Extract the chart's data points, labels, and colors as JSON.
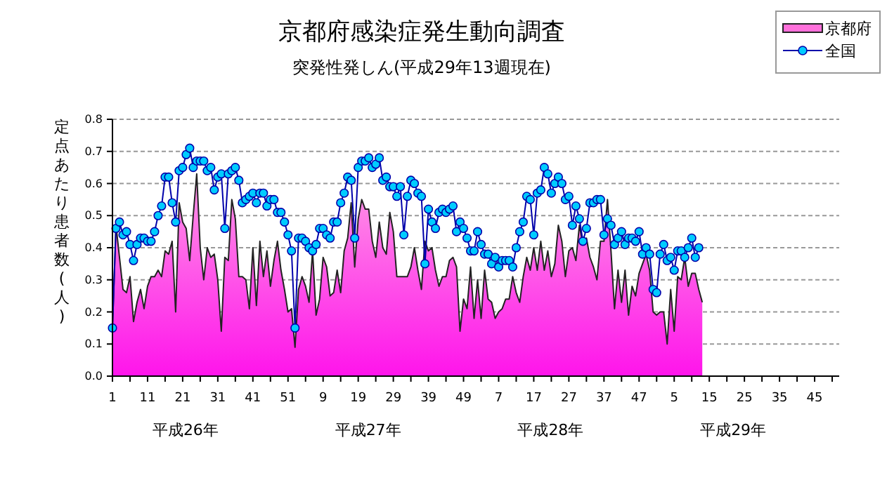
{
  "chart_data": {
    "type": "area",
    "title": "京都府感染症発生動向調査",
    "subtitle": "突発性発しん(平成29年13週現在)",
    "ylabel": "定点あたり患者数(人)",
    "categories": [
      "1",
      null,
      null,
      null,
      null,
      null,
      null,
      null,
      null,
      null,
      "11",
      null,
      null,
      null,
      null,
      null,
      null,
      null,
      null,
      null,
      "21",
      null,
      null,
      null,
      null,
      null,
      null,
      null,
      null,
      null,
      "31",
      null,
      null,
      null,
      null,
      null,
      null,
      null,
      null,
      null,
      "41",
      null,
      null,
      null,
      null,
      null,
      null,
      null,
      null,
      null,
      "51",
      null,
      null,
      null,
      null,
      null,
      null,
      null,
      null,
      null,
      "9",
      null,
      null,
      null,
      null,
      null,
      null,
      null,
      null,
      null,
      "19",
      null,
      null,
      null,
      null,
      null,
      null,
      null,
      null,
      null,
      "29",
      null,
      null,
      null,
      null,
      null,
      null,
      null,
      null,
      null,
      "39",
      null,
      null,
      null,
      null,
      null,
      null,
      null,
      null,
      null,
      "49",
      null,
      null,
      null,
      null,
      null,
      null,
      null,
      null,
      null,
      "7",
      null,
      null,
      null,
      null,
      null,
      null,
      null,
      null,
      null,
      "17",
      null,
      null,
      null,
      null,
      null,
      null,
      null,
      null,
      null,
      "27",
      null,
      null,
      null,
      null,
      null,
      null,
      null,
      null,
      null,
      "37",
      null,
      null,
      null,
      null,
      null,
      null,
      null,
      null,
      null,
      "47",
      null,
      null,
      null,
      null,
      null,
      null,
      null,
      null,
      null,
      "5",
      null,
      null,
      null,
      null,
      null,
      null,
      null,
      null,
      null,
      "15",
      null,
      null,
      null,
      null,
      null,
      null,
      null,
      null,
      null,
      "25",
      null,
      null,
      null,
      null,
      null,
      null,
      null,
      null,
      null,
      "35",
      null,
      null,
      null,
      null,
      null,
      null,
      null,
      null,
      null,
      "45",
      null,
      null,
      null,
      null,
      null,
      null,
      null
    ],
    "series": [
      {
        "name": "京都府",
        "color": "#ff33cc",
        "values": [
          0.15,
          0.47,
          0.37,
          0.27,
          0.26,
          0.31,
          0.17,
          0.23,
          0.27,
          0.21,
          0.28,
          0.31,
          0.31,
          0.33,
          0.31,
          0.39,
          0.38,
          0.42,
          0.2,
          0.54,
          0.48,
          0.46,
          0.36,
          0.5,
          0.63,
          0.4,
          0.3,
          0.4,
          0.37,
          0.38,
          0.3,
          0.14,
          0.37,
          0.36,
          0.55,
          0.49,
          0.31,
          0.31,
          0.3,
          0.21,
          0.4,
          0.22,
          0.42,
          0.31,
          0.39,
          0.28,
          0.36,
          0.42,
          0.33,
          0.27,
          0.2,
          0.21,
          0.09,
          0.27,
          0.31,
          0.28,
          0.23,
          0.39,
          0.19,
          0.24,
          0.37,
          0.34,
          0.25,
          0.26,
          0.33,
          0.26,
          0.39,
          0.43,
          0.54,
          0.34,
          0.49,
          0.55,
          0.52,
          0.52,
          0.42,
          0.37,
          0.48,
          0.4,
          0.38,
          0.51,
          0.45,
          0.31,
          0.31,
          0.31,
          0.31,
          0.34,
          0.4,
          0.33,
          0.27,
          0.42,
          0.39,
          0.4,
          0.33,
          0.28,
          0.31,
          0.31,
          0.36,
          0.37,
          0.34,
          0.14,
          0.24,
          0.21,
          0.34,
          0.18,
          0.3,
          0.18,
          0.33,
          0.24,
          0.23,
          0.18,
          0.2,
          0.21,
          0.24,
          0.24,
          0.31,
          0.26,
          0.23,
          0.31,
          0.37,
          0.33,
          0.4,
          0.33,
          0.42,
          0.33,
          0.39,
          0.31,
          0.35,
          0.47,
          0.42,
          0.31,
          0.39,
          0.4,
          0.36,
          0.47,
          0.41,
          0.43,
          0.37,
          0.34,
          0.3,
          0.42,
          0.42,
          0.55,
          0.39,
          0.21,
          0.33,
          0.23,
          0.33,
          0.19,
          0.28,
          0.25,
          0.32,
          0.35,
          0.38,
          0.33,
          0.2,
          0.19,
          0.2,
          0.2,
          0.1,
          0.27,
          0.14,
          0.31,
          0.3,
          0.37,
          0.28,
          0.32,
          0.32,
          0.27,
          0.23,
          null,
          null,
          null,
          null,
          null,
          null,
          null,
          null,
          null,
          null,
          null,
          null,
          null,
          null,
          null,
          null,
          null,
          null,
          null,
          null,
          null,
          null,
          null,
          null,
          null,
          null,
          null,
          null,
          null,
          null,
          null,
          null,
          null,
          null,
          null,
          null,
          null,
          null,
          null
        ]
      },
      {
        "name": "全国",
        "type": "line",
        "color": "#00ccff",
        "marker": "circle",
        "values": [
          0.15,
          0.46,
          0.48,
          0.44,
          0.45,
          0.41,
          0.36,
          0.41,
          0.43,
          0.43,
          0.42,
          0.42,
          0.45,
          0.5,
          0.53,
          0.62,
          0.62,
          0.54,
          0.48,
          0.64,
          0.65,
          0.69,
          0.71,
          0.65,
          0.67,
          0.67,
          0.67,
          0.64,
          0.65,
          0.58,
          0.62,
          0.63,
          0.46,
          0.63,
          0.64,
          0.65,
          0.61,
          0.54,
          0.55,
          0.56,
          0.57,
          0.54,
          0.57,
          0.57,
          0.53,
          0.55,
          0.55,
          0.51,
          0.51,
          0.48,
          0.44,
          0.39,
          0.15,
          0.43,
          0.43,
          0.42,
          0.4,
          0.39,
          0.41,
          0.46,
          0.46,
          0.44,
          0.43,
          0.48,
          0.48,
          0.54,
          0.57,
          0.62,
          0.61,
          0.43,
          0.65,
          0.67,
          0.67,
          0.68,
          0.65,
          0.66,
          0.68,
          0.61,
          0.62,
          0.59,
          0.59,
          0.56,
          0.59,
          0.44,
          0.56,
          0.61,
          0.6,
          0.57,
          0.56,
          0.35,
          0.52,
          0.48,
          0.46,
          0.51,
          0.52,
          0.51,
          0.52,
          0.53,
          0.45,
          0.48,
          0.46,
          0.43,
          0.39,
          0.39,
          0.45,
          0.41,
          0.38,
          0.38,
          0.35,
          0.37,
          0.34,
          0.36,
          0.36,
          0.36,
          0.34,
          0.4,
          0.45,
          0.48,
          0.56,
          0.55,
          0.44,
          0.57,
          0.58,
          0.65,
          0.63,
          0.57,
          0.6,
          0.62,
          0.6,
          0.55,
          0.56,
          0.47,
          0.53,
          0.49,
          0.42,
          0.46,
          0.54,
          0.54,
          0.55,
          0.55,
          0.44,
          0.49,
          0.47,
          0.41,
          0.43,
          0.45,
          0.41,
          0.43,
          0.43,
          0.42,
          0.45,
          0.38,
          0.4,
          0.38,
          0.27,
          0.26,
          0.38,
          0.41,
          0.36,
          0.37,
          0.33,
          0.39,
          0.39,
          0.37,
          0.4,
          0.43,
          0.37,
          0.4,
          null,
          null,
          null,
          null,
          null,
          null,
          null,
          null,
          null,
          null,
          null,
          null,
          null,
          null,
          null,
          null,
          null,
          null,
          null,
          null,
          null,
          null,
          null,
          null,
          null,
          null,
          null,
          null,
          null,
          null,
          null,
          null,
          null,
          null,
          null,
          null,
          null,
          null,
          null,
          null
        ]
      }
    ],
    "ylim": [
      0,
      0.8
    ],
    "yticks": [
      {
        "value": 0,
        "label": "0.0"
      },
      {
        "value": 0.1,
        "label": "0.1"
      },
      {
        "value": 0.2,
        "label": "0.2"
      },
      {
        "value": 0.3,
        "label": "0.3"
      },
      {
        "value": 0.4,
        "label": "0.4"
      },
      {
        "value": 0.5,
        "label": "0.5"
      },
      {
        "value": 0.6,
        "label": "0.6"
      },
      {
        "value": 0.7,
        "label": "0.7"
      },
      {
        "value": 0.8,
        "label": "0.8"
      }
    ],
    "grid": "y",
    "legend": "top right",
    "annotations": [
      "平成26年",
      "平成27年",
      "平成28年",
      "平成29年"
    ]
  }
}
